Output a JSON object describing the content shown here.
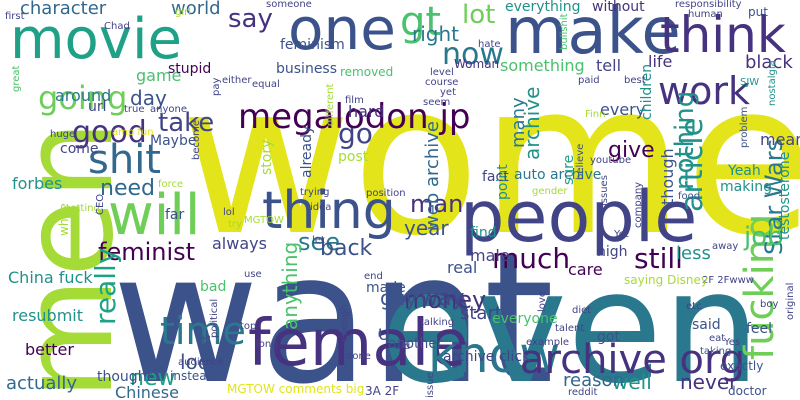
{
  "palette": {
    "yellow": "#e3e419",
    "lime": "#a5db36",
    "green": "#4ac16d",
    "teal": "#21918c",
    "blue": "#31688e",
    "navy": "#3b528b",
    "indigo": "#46327e",
    "purple": "#440154",
    "mint": "#6ece58",
    "aqua": "#1fa187",
    "sea": "#2a788e",
    "slate": "#414487"
  },
  "words": [
    {
      "text": "women",
      "color": "yellow"
    },
    {
      "text": "want",
      "color": "navy"
    },
    {
      "text": "even",
      "color": "sea"
    },
    {
      "text": "men",
      "color": "lime"
    },
    {
      "text": "people",
      "color": "slate"
    },
    {
      "text": "female",
      "color": "indigo"
    },
    {
      "text": "make",
      "color": "navy"
    },
    {
      "text": "one",
      "color": "navy"
    },
    {
      "text": "movie",
      "color": "aqua"
    },
    {
      "text": "will",
      "color": "mint"
    },
    {
      "text": "thing",
      "color": "navy"
    },
    {
      "text": "think",
      "color": "indigo"
    },
    {
      "text": "know",
      "color": "sea"
    },
    {
      "text": "archive org",
      "color": "indigo"
    },
    {
      "text": "fucking",
      "color": "mint"
    },
    {
      "text": "shit",
      "color": "blue"
    },
    {
      "text": "time",
      "color": "sea"
    },
    {
      "text": "work",
      "color": "indigo"
    },
    {
      "text": "gt",
      "color": "green"
    },
    {
      "text": "megalodon jp",
      "color": "purple"
    },
    {
      "text": "going",
      "color": "mint"
    },
    {
      "text": "good",
      "color": "indigo"
    },
    {
      "text": "feminist",
      "color": "purple"
    },
    {
      "text": "now",
      "color": "sea"
    },
    {
      "text": "Star Wars",
      "color": "sea"
    },
    {
      "text": "job",
      "color": "green"
    },
    {
      "text": "much",
      "color": "purple"
    },
    {
      "text": "still",
      "color": "purple"
    },
    {
      "text": "say",
      "color": "indigo"
    },
    {
      "text": "lot",
      "color": "mint"
    },
    {
      "text": "right",
      "color": "sea"
    },
    {
      "text": "take",
      "color": "slate"
    },
    {
      "text": "need",
      "color": "blue"
    },
    {
      "text": "man",
      "color": "indigo"
    },
    {
      "text": "see",
      "color": "sea"
    },
    {
      "text": "money",
      "color": "indigo"
    },
    {
      "text": "go",
      "color": "slate"
    },
    {
      "text": "really",
      "color": "aqua"
    },
    {
      "text": "archive",
      "color": "teal"
    },
    {
      "text": "article",
      "color": "teal"
    },
    {
      "text": "nothing",
      "color": "teal"
    },
    {
      "text": "back",
      "color": "navy"
    },
    {
      "text": "year",
      "color": "navy"
    },
    {
      "text": "way",
      "color": "slate"
    },
    {
      "text": "guy",
      "color": "navy"
    },
    {
      "text": "give",
      "color": "purple"
    },
    {
      "text": "web archive",
      "color": "blue"
    },
    {
      "text": "look",
      "color": "navy"
    },
    {
      "text": "new",
      "color": "aqua"
    },
    {
      "text": "well",
      "color": "teal"
    },
    {
      "text": "never",
      "color": "indigo"
    },
    {
      "text": "reason",
      "color": "blue"
    },
    {
      "text": "many",
      "color": "sea"
    },
    {
      "text": "character",
      "color": "blue"
    },
    {
      "text": "world",
      "color": "blue"
    },
    {
      "text": "everything",
      "color": "teal"
    },
    {
      "text": "day",
      "color": "navy"
    },
    {
      "text": "game",
      "color": "green"
    },
    {
      "text": "around",
      "color": "sea"
    },
    {
      "text": "forbes",
      "color": "teal"
    },
    {
      "text": "China fuck",
      "color": "teal"
    },
    {
      "text": "resubmit",
      "color": "teal"
    },
    {
      "text": "better",
      "color": "purple"
    },
    {
      "text": "actually",
      "color": "blue"
    },
    {
      "text": "Chinese",
      "color": "blue"
    },
    {
      "text": "always",
      "color": "slate"
    },
    {
      "text": "bad",
      "color": "green"
    },
    {
      "text": "anything",
      "color": "green"
    },
    {
      "text": "made",
      "color": "navy"
    },
    {
      "text": "start",
      "color": "slate"
    },
    {
      "text": "real",
      "color": "navy"
    },
    {
      "text": "care",
      "color": "purple"
    },
    {
      "text": "high",
      "color": "slate"
    },
    {
      "text": "less",
      "color": "teal"
    },
    {
      "text": "every",
      "color": "navy"
    },
    {
      "text": "sure",
      "color": "aqua"
    },
    {
      "text": "point",
      "color": "teal"
    },
    {
      "text": "fact",
      "color": "slate"
    },
    {
      "text": "auto archive",
      "color": "sea"
    },
    {
      "text": "find",
      "color": "teal"
    },
    {
      "text": "male",
      "color": "slate"
    },
    {
      "text": "something",
      "color": "green"
    },
    {
      "text": "tell",
      "color": "slate"
    },
    {
      "text": "life",
      "color": "indigo"
    },
    {
      "text": "black",
      "color": "indigo"
    },
    {
      "text": "mean",
      "color": "slate"
    },
    {
      "text": "children",
      "color": "teal"
    },
    {
      "text": "testosterone",
      "color": "teal"
    },
    {
      "text": "Yeah",
      "color": "teal"
    },
    {
      "text": "making",
      "color": "teal"
    },
    {
      "text": "though",
      "color": "navy"
    },
    {
      "text": "far",
      "color": "navy"
    },
    {
      "text": "stupid",
      "color": "purple"
    },
    {
      "text": "business",
      "color": "navy"
    },
    {
      "text": "feminism",
      "color": "navy"
    },
    {
      "text": "removed",
      "color": "green"
    },
    {
      "text": "Woman",
      "color": "indigo"
    },
    {
      "text": "story",
      "color": "lime"
    },
    {
      "text": "already",
      "color": "navy"
    },
    {
      "text": "post",
      "color": "lime"
    },
    {
      "text": "hard",
      "color": "indigo"
    },
    {
      "text": "film",
      "color": "slate"
    },
    {
      "text": "url",
      "color": "slate"
    },
    {
      "text": "Maybe",
      "color": "navy"
    },
    {
      "text": "come",
      "color": "slate"
    },
    {
      "text": "instead",
      "color": "navy"
    },
    {
      "text": "MGTOW comments big",
      "color": "yellow"
    },
    {
      "text": "3A 2F",
      "color": "slate"
    },
    {
      "text": "doctor",
      "color": "navy"
    },
    {
      "text": "exactly",
      "color": "navy"
    },
    {
      "text": "taking",
      "color": "navy"
    },
    {
      "text": "said",
      "color": "navy"
    },
    {
      "text": "feel",
      "color": "navy"
    },
    {
      "text": "another",
      "color": "navy"
    },
    {
      "text": "archive click",
      "color": "slate"
    },
    {
      "text": "got",
      "color": "navy"
    },
    {
      "text": "everyone",
      "color": "green"
    },
    {
      "text": "U",
      "color": "navy"
    },
    {
      "text": "white",
      "color": "lime"
    },
    {
      "text": "thought",
      "color": "navy"
    },
    {
      "text": "part",
      "color": "navy"
    },
    {
      "text": "Chad",
      "color": "slate"
    },
    {
      "text": "either",
      "color": "slate"
    },
    {
      "text": "someone",
      "color": "slate"
    },
    {
      "text": "without",
      "color": "indigo"
    },
    {
      "text": "responsibility",
      "color": "slate"
    },
    {
      "text": "put",
      "color": "navy"
    },
    {
      "text": "first",
      "color": "slate"
    },
    {
      "text": "girl",
      "color": "lime"
    },
    {
      "text": "great",
      "color": "green"
    },
    {
      "text": "hate",
      "color": "slate"
    },
    {
      "text": "paid",
      "color": "slate"
    },
    {
      "text": "best",
      "color": "slate"
    },
    {
      "text": "SJW",
      "color": "teal"
    },
    {
      "text": "nostalgia",
      "color": "teal"
    },
    {
      "text": "level",
      "color": "slate"
    },
    {
      "text": "course",
      "color": "slate"
    },
    {
      "text": "yet",
      "color": "slate"
    },
    {
      "text": "human",
      "color": "slate"
    },
    {
      "text": "bullshit",
      "color": "green"
    },
    {
      "text": "true",
      "color": "slate"
    },
    {
      "text": "anyone",
      "color": "slate"
    },
    {
      "text": "amp fun",
      "color": "yellow"
    },
    {
      "text": "pay",
      "color": "slate"
    },
    {
      "text": "equal",
      "color": "slate"
    },
    {
      "text": "different",
      "color": "lime"
    },
    {
      "text": "seem",
      "color": "slate"
    },
    {
      "text": "Finn",
      "color": "lime"
    },
    {
      "text": "believe",
      "color": "navy"
    },
    {
      "text": "youtube",
      "color": "slate"
    },
    {
      "text": "problem",
      "color": "navy"
    },
    {
      "text": "huge",
      "color": "slate"
    },
    {
      "text": "become",
      "color": "slate"
    },
    {
      "text": "getting",
      "color": "lime"
    },
    {
      "text": "CEO",
      "color": "slate"
    },
    {
      "text": "MGTOW",
      "color": "lime"
    },
    {
      "text": "lol",
      "color": "slate"
    },
    {
      "text": "try",
      "color": "lime"
    },
    {
      "text": "trying",
      "color": "slate"
    },
    {
      "text": "idea",
      "color": "slate"
    },
    {
      "text": "position",
      "color": "slate"
    },
    {
      "text": "gender",
      "color": "lime"
    },
    {
      "text": "food",
      "color": "navy"
    },
    {
      "text": "away",
      "color": "slate"
    },
    {
      "text": "let",
      "color": "slate"
    },
    {
      "text": "end",
      "color": "slate"
    },
    {
      "text": "use",
      "color": "slate"
    },
    {
      "text": "top",
      "color": "slate"
    },
    {
      "text": "political",
      "color": "slate"
    },
    {
      "text": "enough",
      "color": "slate"
    },
    {
      "text": "long",
      "color": "slate"
    },
    {
      "text": "done",
      "color": "slate"
    },
    {
      "text": "old",
      "color": "slate"
    },
    {
      "text": "issue",
      "color": "slate"
    },
    {
      "text": "reddit",
      "color": "slate"
    },
    {
      "text": "audience",
      "color": "slate"
    },
    {
      "text": "talking",
      "color": "slate"
    },
    {
      "text": "example",
      "color": "slate"
    },
    {
      "text": "talent",
      "color": "slate"
    },
    {
      "text": "love",
      "color": "slate"
    },
    {
      "text": "diet",
      "color": "slate"
    },
    {
      "text": "boy",
      "color": "slate"
    },
    {
      "text": "eat",
      "color": "slate"
    },
    {
      "text": "Yes",
      "color": "slate"
    },
    {
      "text": "original",
      "color": "slate"
    },
    {
      "text": "2F 2Fwww",
      "color": "slate"
    },
    {
      "text": "saying Disney",
      "color": "lime"
    },
    {
      "text": "etc",
      "color": "slate"
    },
    {
      "text": "company",
      "color": "slate"
    },
    {
      "text": "Yet",
      "color": "slate"
    },
    {
      "text": "issues",
      "color": "slate"
    },
    {
      "text": "force",
      "color": "lime"
    }
  ]
}
